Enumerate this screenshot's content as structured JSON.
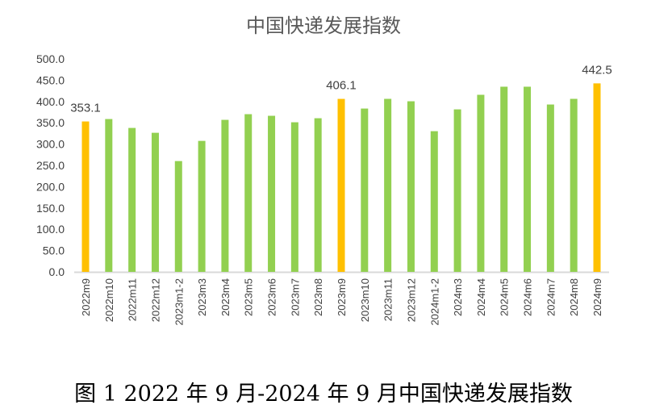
{
  "chart_data": {
    "type": "bar",
    "title": "中国快递发展指数",
    "caption": "图 1 2022 年 9 月-2024 年 9 月中国快递发展指数",
    "xlabel": "",
    "ylabel": "",
    "ylim": [
      0,
      500
    ],
    "yticks": [
      "0.0",
      "50.0",
      "100.0",
      "150.0",
      "200.0",
      "250.0",
      "300.0",
      "350.0",
      "400.0",
      "450.0",
      "500.0"
    ],
    "categories": [
      "2022m9",
      "2022m10",
      "2022m11",
      "2022m12",
      "2023m1-2",
      "2023m3",
      "2023m4",
      "2023m5",
      "2023m6",
      "2023m7",
      "2023m8",
      "2023m9",
      "2023m10",
      "2023m11",
      "2023m12",
      "2024m1-2",
      "2024m3",
      "2024m4",
      "2024m5",
      "2024m6",
      "2024m7",
      "2024m8",
      "2024m9"
    ],
    "values": [
      353.1,
      358.8,
      337.9,
      326.5,
      260.1,
      307.5,
      356.9,
      370.2,
      366.4,
      351.2,
      360.7,
      406.1,
      383.4,
      406.2,
      400.5,
      330.3,
      381.5,
      415.7,
      434.7,
      434.7,
      392.9,
      406.2,
      442.5
    ],
    "highlighted": [
      0,
      11,
      22
    ],
    "data_labels": {
      "0": "353.1",
      "11": "406.1",
      "22": "442.5"
    },
    "colors": {
      "normal": "#92D050",
      "highlight": "#FFC000",
      "axis": "#D9D9D9"
    },
    "grid": false,
    "legend": "none"
  }
}
